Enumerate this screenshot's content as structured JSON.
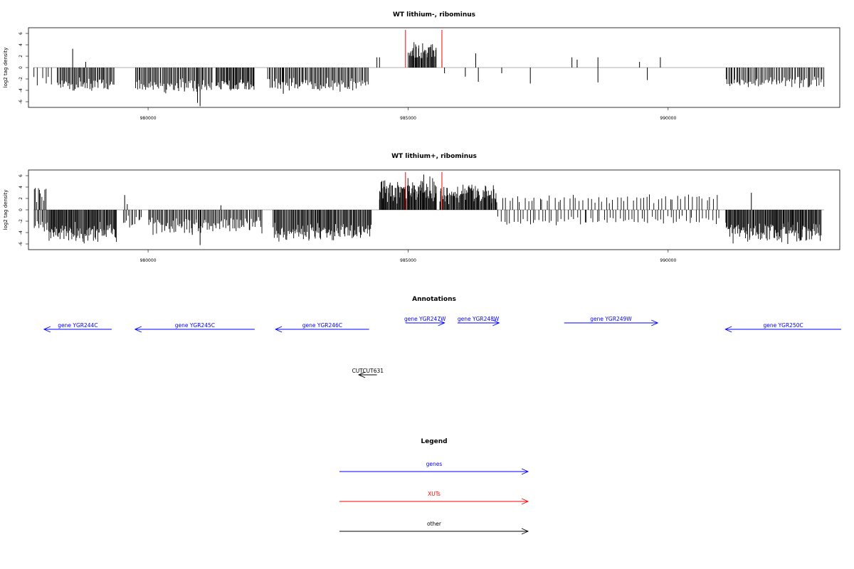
{
  "chart_data": [
    {
      "type": "bar",
      "title": "WT lithium-, ribominus",
      "ylabel": "log2 tag density",
      "xlim": [
        977700,
        993300
      ],
      "ylim": [
        -7,
        7
      ],
      "xticks": [
        980000,
        985000,
        990000
      ],
      "yticks": [
        -6,
        -4,
        -2,
        0,
        2,
        4,
        6
      ],
      "markers": [
        984950,
        985650
      ],
      "clusters": [
        {
          "from": 977800,
          "to": 978200,
          "min": -3.2,
          "max": -1.5,
          "n": 6
        },
        {
          "from": 978250,
          "to": 979350,
          "min": -4.4,
          "max": -1.6,
          "n": 55
        },
        {
          "from": 979750,
          "to": 981250,
          "min": -4.6,
          "max": -1.8,
          "n": 70
        },
        {
          "from": 981300,
          "to": 982050,
          "min": -4.5,
          "max": -1.8,
          "n": 45
        },
        {
          "from": 982300,
          "to": 983950,
          "min": -4.6,
          "max": -1.6,
          "n": 75
        },
        {
          "from": 983950,
          "to": 984250,
          "min": -4.2,
          "max": -1.5,
          "n": 12
        },
        {
          "from": 985000,
          "to": 985550,
          "min": 1.0,
          "max": 5.0,
          "n": 40
        },
        {
          "from": 991100,
          "to": 993000,
          "min": -3.8,
          "max": -1.5,
          "n": 75
        }
      ],
      "bars": [
        [
          978550,
          3.3
        ],
        [
          978800,
          1.0
        ],
        [
          980700,
          -4.2
        ],
        [
          980950,
          -6.2
        ],
        [
          981000,
          -6.8
        ],
        [
          982600,
          -4.6
        ],
        [
          984400,
          1.8
        ],
        [
          984450,
          1.8
        ],
        [
          985650,
          1.4
        ],
        [
          985700,
          -1.0
        ],
        [
          986100,
          -1.6
        ],
        [
          986300,
          2.5
        ],
        [
          986350,
          -2.5
        ],
        [
          986800,
          -1.0
        ],
        [
          987350,
          -2.8
        ],
        [
          988150,
          1.8
        ],
        [
          988250,
          1.4
        ],
        [
          988650,
          1.8
        ],
        [
          988650,
          -2.6
        ],
        [
          989450,
          1.0
        ],
        [
          989600,
          -2.2
        ],
        [
          989850,
          1.8
        ]
      ]
    },
    {
      "type": "bar",
      "title": "WT lithium+, ribominus",
      "ylabel": "log2 tag density",
      "xlim": [
        977700,
        993300
      ],
      "ylim": [
        -7,
        7
      ],
      "xticks": [
        980000,
        985000,
        990000
      ],
      "yticks": [
        -6,
        -4,
        -2,
        0,
        2,
        4,
        6
      ],
      "markers": [
        984950,
        985650
      ],
      "clusters": [
        {
          "from": 977800,
          "to": 978050,
          "min": 0.8,
          "max": 4.6,
          "n": 10
        },
        {
          "from": 977800,
          "to": 978050,
          "min": -4.6,
          "max": -1.5,
          "n": 10
        },
        {
          "from": 978050,
          "to": 979400,
          "min": -6.0,
          "max": -2.0,
          "n": 95
        },
        {
          "from": 979500,
          "to": 979900,
          "min": -3.5,
          "max": -0.8,
          "n": 12
        },
        {
          "from": 980000,
          "to": 981300,
          "min": -4.5,
          "max": -1.0,
          "n": 60
        },
        {
          "from": 981300,
          "to": 982200,
          "min": -4.6,
          "max": -1.2,
          "n": 40
        },
        {
          "from": 982400,
          "to": 984300,
          "min": -5.8,
          "max": -2.0,
          "n": 120
        },
        {
          "from": 984450,
          "to": 985550,
          "min": 0.8,
          "max": 6.3,
          "n": 90
        },
        {
          "from": 985600,
          "to": 986700,
          "min": 0.8,
          "max": 5.0,
          "n": 80
        },
        {
          "from": 986700,
          "to": 991000,
          "min": 0.8,
          "max": 2.8,
          "n": 60
        },
        {
          "from": 986700,
          "to": 991000,
          "min": -2.8,
          "max": -0.8,
          "n": 70
        },
        {
          "from": 991100,
          "to": 992950,
          "min": -6.0,
          "max": -2.0,
          "n": 130
        }
      ],
      "bars": [
        [
          979550,
          2.6
        ],
        [
          979600,
          1.0
        ],
        [
          980850,
          -4.4
        ],
        [
          981000,
          -6.2
        ],
        [
          981400,
          0.8
        ],
        [
          984450,
          1.8
        ],
        [
          984500,
          3.8
        ],
        [
          985300,
          6.2
        ],
        [
          991600,
          3.0
        ],
        [
          992300,
          -6.0
        ]
      ]
    }
  ],
  "annotations": {
    "title": "Annotations",
    "genes": [
      {
        "label": "gene YGR244C",
        "dir": "left",
        "from": 978000,
        "to": 979300,
        "row": 2
      },
      {
        "label": "gene YGR245C",
        "dir": "left",
        "from": 979750,
        "to": 982050,
        "row": 2
      },
      {
        "label": "gene YGR246C",
        "dir": "left",
        "from": 982450,
        "to": 984250,
        "row": 2
      },
      {
        "label": "gene YGR247W",
        "dir": "right",
        "from": 984950,
        "to": 985700,
        "row": 1
      },
      {
        "label": "gene YGR248W",
        "dir": "right",
        "from": 985950,
        "to": 986750,
        "row": 1
      },
      {
        "label": "gene YGR249W",
        "dir": "right",
        "from": 988000,
        "to": 989800,
        "row": 1
      },
      {
        "label": "gene YGR250C",
        "dir": "left",
        "from": 991100,
        "to": 993400,
        "row": 2
      }
    ],
    "other": [
      {
        "label": "CUT",
        "suffix": "CUT631",
        "dir": "left",
        "from": 984050,
        "to": 984400
      }
    ]
  },
  "legend": {
    "title": "Legend",
    "items": [
      {
        "label": "genes",
        "color": "#0000ff"
      },
      {
        "label": "XUTs",
        "color": "#ff0000"
      },
      {
        "label": "other",
        "color": "#000000"
      }
    ]
  },
  "colors": {
    "gene": "#0000ff",
    "xut": "#ff0000",
    "other": "#000000",
    "axis": "#000000",
    "baseline": "#999999"
  }
}
